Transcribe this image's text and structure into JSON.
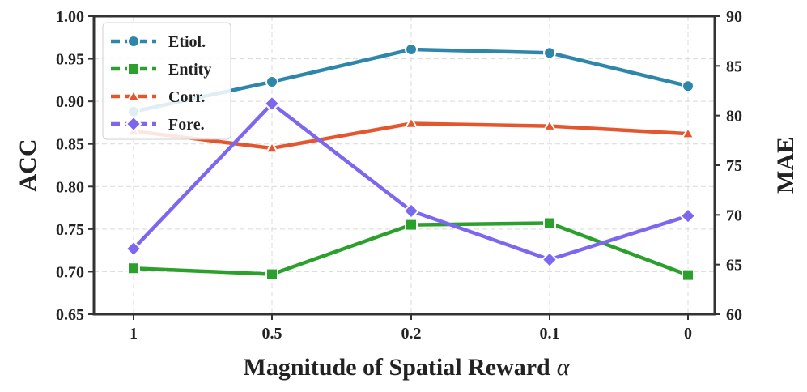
{
  "chart_data": {
    "type": "line",
    "title": "",
    "xlabel": "Magnitude of Spatial Reward",
    "xlabel_symbol": "α",
    "ylabel_left": "ACC",
    "ylabel_right": "MAE",
    "categories": [
      "1",
      "0.5",
      "0.2",
      "0.1",
      "0"
    ],
    "ylim_left": [
      0.65,
      1.0
    ],
    "ylim_right": [
      60,
      90
    ],
    "yticks_left": [
      "0.65",
      "0.70",
      "0.75",
      "0.80",
      "0.85",
      "0.90",
      "0.95",
      "1.00"
    ],
    "yticks_right": [
      "60",
      "65",
      "70",
      "75",
      "80",
      "85",
      "90"
    ],
    "grid": true,
    "legend_position": "top-left",
    "series": [
      {
        "name": "Etiol.",
        "axis": "left",
        "marker": "circle",
        "color": "#2E86AB",
        "values": [
          0.888,
          0.923,
          0.961,
          0.957,
          0.918
        ]
      },
      {
        "name": "Entity",
        "axis": "left",
        "marker": "square",
        "color": "#2CA02C",
        "values": [
          0.704,
          0.697,
          0.755,
          0.757,
          0.696
        ]
      },
      {
        "name": "Corr.",
        "axis": "left",
        "marker": "triangle",
        "color": "#E4572E",
        "values": [
          0.865,
          0.845,
          0.874,
          0.871,
          0.862
        ]
      },
      {
        "name": "Fore.",
        "axis": "right",
        "marker": "diamond",
        "color": "#7B68EE",
        "values": [
          66.6,
          81.2,
          70.4,
          65.5,
          69.9
        ]
      }
    ]
  }
}
